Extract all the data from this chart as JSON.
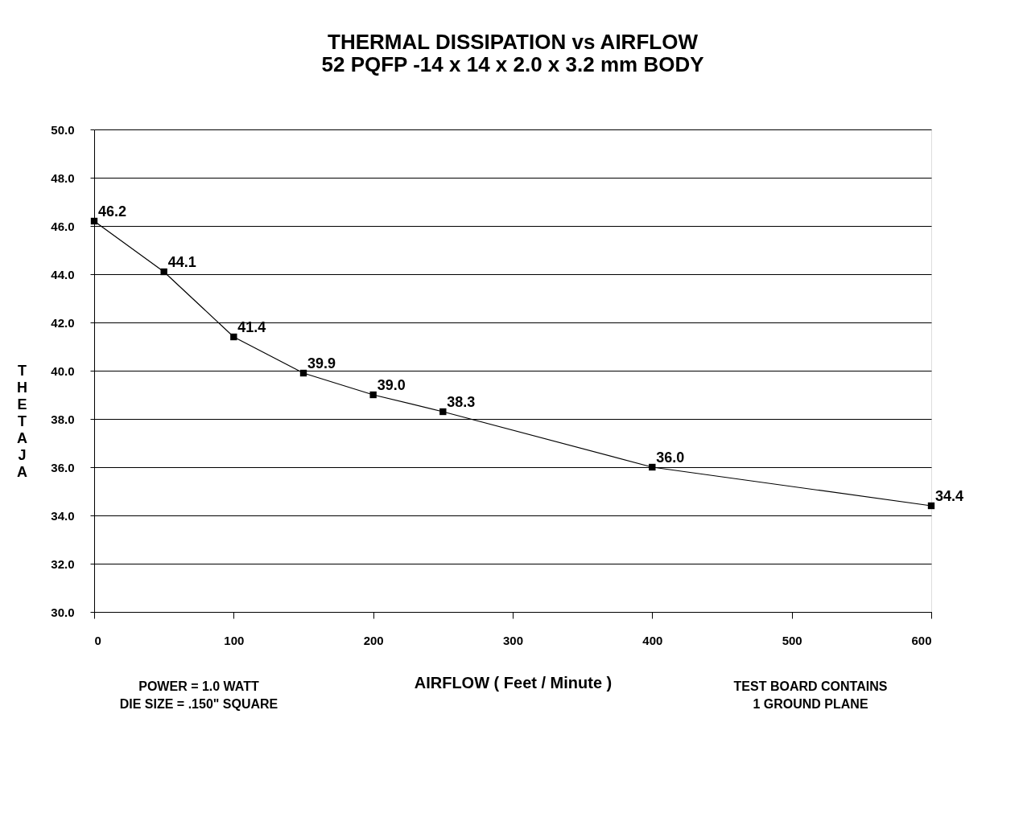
{
  "chart_data": {
    "type": "line",
    "title": "THERMAL DISSIPATION vs AIRFLOW",
    "subtitle": "52 PQFP -14 x 14 x 2.0 x 3.2 mm BODY",
    "xlabel": "AIRFLOW ( Feet / Minute )",
    "ylabel": "THETA JA",
    "x": [
      0,
      50,
      100,
      150,
      200,
      250,
      400,
      600
    ],
    "series": [
      {
        "color": "#000000",
        "values": [
          46.2,
          44.1,
          41.4,
          39.9,
          39.0,
          38.3,
          36.0,
          34.4
        ],
        "value_labels": [
          "46.2",
          "44.1",
          "41.4",
          "39.9",
          "39.0",
          "38.3",
          "36.0",
          "34.4"
        ]
      }
    ],
    "xlim": [
      0,
      600
    ],
    "xticks": [
      0,
      100,
      200,
      300,
      400,
      500,
      600
    ],
    "ylim": [
      30,
      50
    ],
    "yticks": [
      {
        "value": 30,
        "label": "30.0"
      },
      {
        "value": 32,
        "label": "32.0"
      },
      {
        "value": 34,
        "label": "34.0"
      },
      {
        "value": 36,
        "label": "36.0"
      },
      {
        "value": 38,
        "label": "38.0"
      },
      {
        "value": 40,
        "label": "40.0"
      },
      {
        "value": 42,
        "label": "42.0"
      },
      {
        "value": 44,
        "label": "44.0"
      },
      {
        "value": 46,
        "label": "46.0"
      },
      {
        "value": 48,
        "label": "48.0"
      },
      {
        "value": 50,
        "label": "50.0"
      }
    ],
    "grid": "y",
    "marker": "square",
    "line_style": "solid",
    "annotations": [
      "POWER = 1.0 WATT\nDIE SIZE = .150\" SQUARE",
      "TEST BOARD CONTAINS\n1 GROUND PLANE"
    ]
  }
}
